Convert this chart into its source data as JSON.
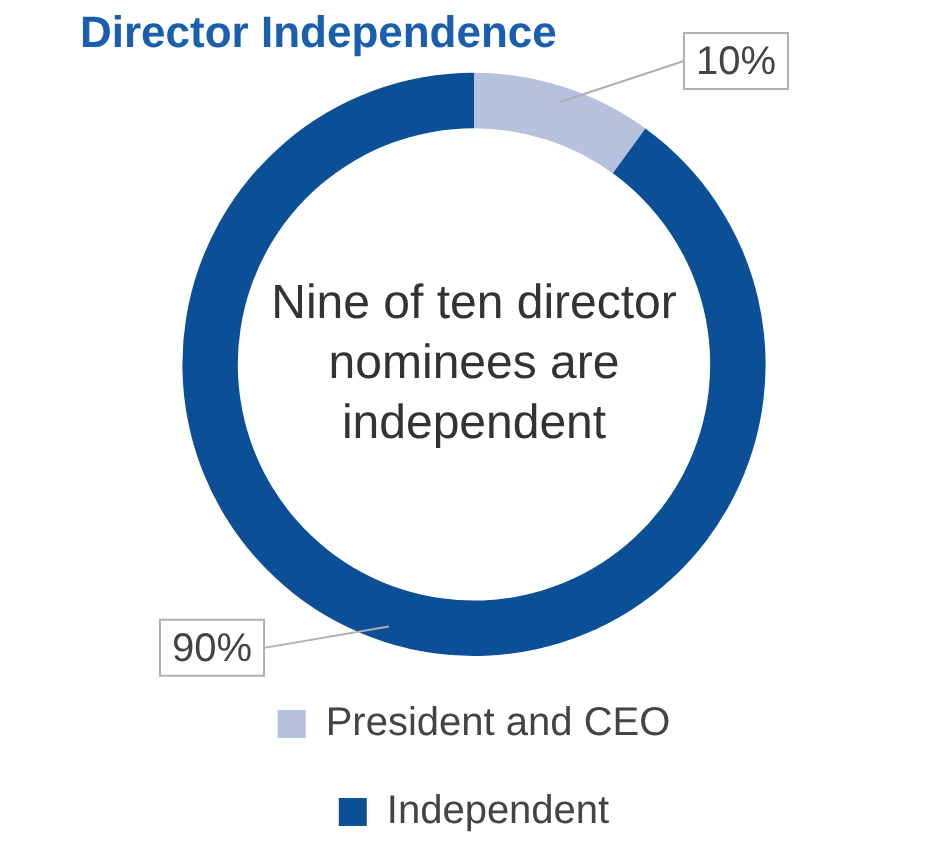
{
  "chart_data": {
    "type": "donut",
    "title": "Director Independence",
    "categories": [
      "President and CEO",
      "Independent"
    ],
    "values": [
      10,
      90
    ],
    "colors": [
      "#b5c1dd",
      "#0b4f96"
    ],
    "value_labels": [
      "10%",
      "90%"
    ],
    "annotations": [
      "Nine of ten director nominees are independent"
    ],
    "legend": "bottom"
  }
}
